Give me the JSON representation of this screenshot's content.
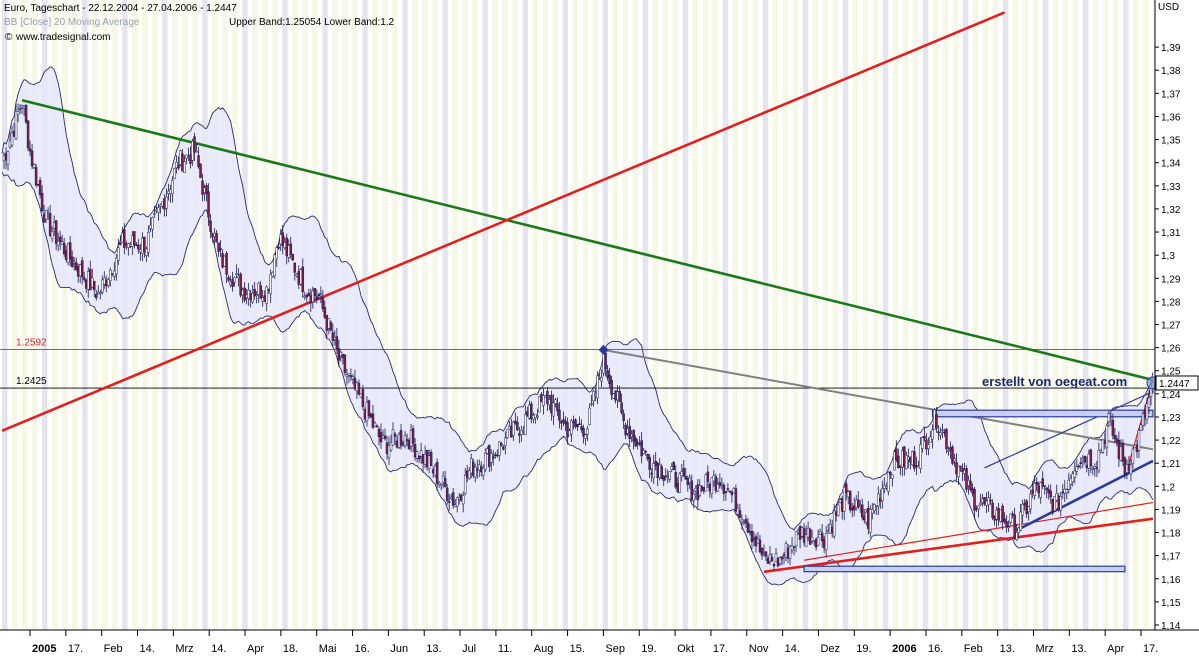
{
  "window": {
    "title": "Euro, Tageschart - 22.12.2004 - 27.04.2006 - 1.2447",
    "indicator_text": "Upper Band:1.25054 Lower Band:1.2",
    "indicator_hidden_text": "BB [Close] 20 Moving Average",
    "source_text": "www.tradesignal.com",
    "watermark": "erstellt von oegeat.com"
  },
  "colors": {
    "background": "#ffffff",
    "stripe_yellow": "#f7f8e4",
    "stripe_grey": "#e4e6ec",
    "band_fill": "#e6e8fb",
    "band_line": "#2a2a78",
    "candle_up": "#ffffff",
    "candle_down": "#7a1f4b",
    "candle_wick": "#1a1a55",
    "green_trend": "#1a7a1a",
    "red_trend": "#e02020",
    "grey_trend": "#808080",
    "marker": "#2a3a9a"
  },
  "chart_data": {
    "type": "candlestick",
    "title": "Euro, Tageschart - 22.12.2004 - 27.04.2006 - 1.2447",
    "currency_label": "USD",
    "ylim": [
      1.14,
      1.4
    ],
    "yticks": [
      "1,14",
      "1,15",
      "1,16",
      "1,17",
      "1,18",
      "1,19",
      "1,2",
      "1,21",
      "1,22",
      "1,23",
      "1,24",
      "1,25",
      "1,26",
      "1,27",
      "1,28",
      "1,29",
      "1,3",
      "1,31",
      "1,32",
      "1,33",
      "1,34",
      "1,35",
      "1,36",
      "1,37",
      "1,38",
      "1,39"
    ],
    "xticks": [
      {
        "label": "2005",
        "bold": true
      },
      {
        "label": "17.",
        "bold": false
      },
      {
        "label": "Feb",
        "bold": false
      },
      {
        "label": "14.",
        "bold": false
      },
      {
        "label": "Mrz",
        "bold": false
      },
      {
        "label": "14.",
        "bold": false
      },
      {
        "label": "Apr",
        "bold": false
      },
      {
        "label": "18.",
        "bold": false
      },
      {
        "label": "Mai",
        "bold": false
      },
      {
        "label": "16.",
        "bold": false
      },
      {
        "label": "Jun",
        "bold": false
      },
      {
        "label": "13.",
        "bold": false
      },
      {
        "label": "Jul",
        "bold": false
      },
      {
        "label": "11.",
        "bold": false
      },
      {
        "label": "Aug",
        "bold": false
      },
      {
        "label": "15.",
        "bold": false
      },
      {
        "label": "Sep",
        "bold": false
      },
      {
        "label": "19.",
        "bold": false
      },
      {
        "label": "Okt",
        "bold": false
      },
      {
        "label": "17.",
        "bold": false
      },
      {
        "label": "Nov",
        "bold": false
      },
      {
        "label": "14.",
        "bold": false
      },
      {
        "label": "Dez",
        "bold": false
      },
      {
        "label": "19.",
        "bold": false
      },
      {
        "label": "2006",
        "bold": true
      },
      {
        "label": "16.",
        "bold": false
      },
      {
        "label": "Feb",
        "bold": false
      },
      {
        "label": "13.",
        "bold": false
      },
      {
        "label": "Mrz",
        "bold": false
      },
      {
        "label": "13.",
        "bold": false
      },
      {
        "label": "Apr",
        "bold": false
      },
      {
        "label": "17.",
        "bold": false
      }
    ],
    "price_anchors": [
      {
        "t": 0,
        "p": 1.34
      },
      {
        "t": 4,
        "p": 1.35
      },
      {
        "t": 10,
        "p": 1.367
      },
      {
        "t": 14,
        "p": 1.345
      },
      {
        "t": 22,
        "p": 1.315
      },
      {
        "t": 33,
        "p": 1.3
      },
      {
        "t": 48,
        "p": 1.283
      },
      {
        "t": 60,
        "p": 1.305
      },
      {
        "t": 72,
        "p": 1.305
      },
      {
        "t": 88,
        "p": 1.34
      },
      {
        "t": 96,
        "p": 1.345
      },
      {
        "t": 108,
        "p": 1.3
      },
      {
        "t": 120,
        "p": 1.285
      },
      {
        "t": 132,
        "p": 1.285
      },
      {
        "t": 138,
        "p": 1.308
      },
      {
        "t": 152,
        "p": 1.285
      },
      {
        "t": 158,
        "p": 1.282
      },
      {
        "t": 168,
        "p": 1.255
      },
      {
        "t": 183,
        "p": 1.23
      },
      {
        "t": 190,
        "p": 1.218
      },
      {
        "t": 202,
        "p": 1.222
      },
      {
        "t": 214,
        "p": 1.208
      },
      {
        "t": 226,
        "p": 1.193
      },
      {
        "t": 234,
        "p": 1.208
      },
      {
        "t": 246,
        "p": 1.215
      },
      {
        "t": 260,
        "p": 1.228
      },
      {
        "t": 272,
        "p": 1.238
      },
      {
        "t": 282,
        "p": 1.225
      },
      {
        "t": 292,
        "p": 1.226
      },
      {
        "t": 300,
        "p": 1.255
      },
      {
        "t": 310,
        "p": 1.228
      },
      {
        "t": 322,
        "p": 1.212
      },
      {
        "t": 334,
        "p": 1.204
      },
      {
        "t": 346,
        "p": 1.198
      },
      {
        "t": 358,
        "p": 1.204
      },
      {
        "t": 370,
        "p": 1.188
      },
      {
        "t": 380,
        "p": 1.168
      },
      {
        "t": 388,
        "p": 1.168
      },
      {
        "t": 398,
        "p": 1.18
      },
      {
        "t": 410,
        "p": 1.178
      },
      {
        "t": 420,
        "p": 1.195
      },
      {
        "t": 432,
        "p": 1.185
      },
      {
        "t": 444,
        "p": 1.21
      },
      {
        "t": 456,
        "p": 1.212
      },
      {
        "t": 466,
        "p": 1.23
      },
      {
        "t": 476,
        "p": 1.21
      },
      {
        "t": 484,
        "p": 1.195
      },
      {
        "t": 496,
        "p": 1.188
      },
      {
        "t": 506,
        "p": 1.182
      },
      {
        "t": 516,
        "p": 1.2
      },
      {
        "t": 526,
        "p": 1.192
      },
      {
        "t": 536,
        "p": 1.212
      },
      {
        "t": 546,
        "p": 1.212
      },
      {
        "t": 552,
        "p": 1.228
      },
      {
        "t": 560,
        "p": 1.208
      },
      {
        "t": 566,
        "p": 1.218
      },
      {
        "t": 574,
        "p": 1.244
      }
    ],
    "price_points_count": 575,
    "last_price": 1.2447,
    "last_price_label": "1.2447",
    "horizontal_lines": [
      {
        "value": 1.2592,
        "label": "1.2592",
        "color": "#e02020"
      },
      {
        "value": 1.2425,
        "label": "1.2425",
        "color": "#000000"
      }
    ],
    "trend_lines": [
      {
        "name": "green-downtrend",
        "color": "#1a7a1a",
        "from": {
          "t": 10,
          "p": 1.367
        },
        "to": {
          "t": 574,
          "p": 1.246
        }
      },
      {
        "name": "red-long-uptrend",
        "color": "#e02020",
        "from": {
          "t": 0,
          "p": 1.224
        },
        "to": {
          "t": 500,
          "p": 1.405
        }
      },
      {
        "name": "grey-resistance",
        "color": "#808080",
        "from": {
          "t": 300,
          "p": 1.259
        },
        "to": {
          "t": 574,
          "p": 1.216
        }
      },
      {
        "name": "red-support-low",
        "color": "#e02020",
        "from": {
          "t": 380,
          "p": 1.163
        },
        "to": {
          "t": 574,
          "p": 1.186
        }
      },
      {
        "name": "red-support-thin",
        "color": "#e02020",
        "from": {
          "t": 400,
          "p": 1.168
        },
        "to": {
          "t": 574,
          "p": 1.193
        }
      },
      {
        "name": "blue-channel-lower",
        "color": "#2a3a9a",
        "from": {
          "t": 506,
          "p": 1.181
        },
        "to": {
          "t": 574,
          "p": 1.211
        }
      },
      {
        "name": "blue-channel-upper",
        "color": "#2a3a9a",
        "from": {
          "t": 490,
          "p": 1.208
        },
        "to": {
          "t": 574,
          "p": 1.241
        }
      },
      {
        "name": "red-steep",
        "color": "#e02020",
        "from": {
          "t": 562,
          "p": 1.21
        },
        "to": {
          "t": 574,
          "p": 1.246
        }
      }
    ],
    "boxes": [
      {
        "name": "horizontal-support-box",
        "from_t": 400,
        "to_t": 560,
        "p_low": 1.1635,
        "p_high": 1.165
      },
      {
        "name": "resistance-box",
        "from_t": 464,
        "to_t": 574,
        "p_low": 1.2305,
        "p_high": 1.2325
      }
    ],
    "markers": [
      {
        "name": "sep-high-marker",
        "t": 300,
        "p": 1.259
      },
      {
        "name": "last-price-marker",
        "t": 574,
        "p": 1.2447
      }
    ],
    "grid": false,
    "legend": "top-left"
  }
}
